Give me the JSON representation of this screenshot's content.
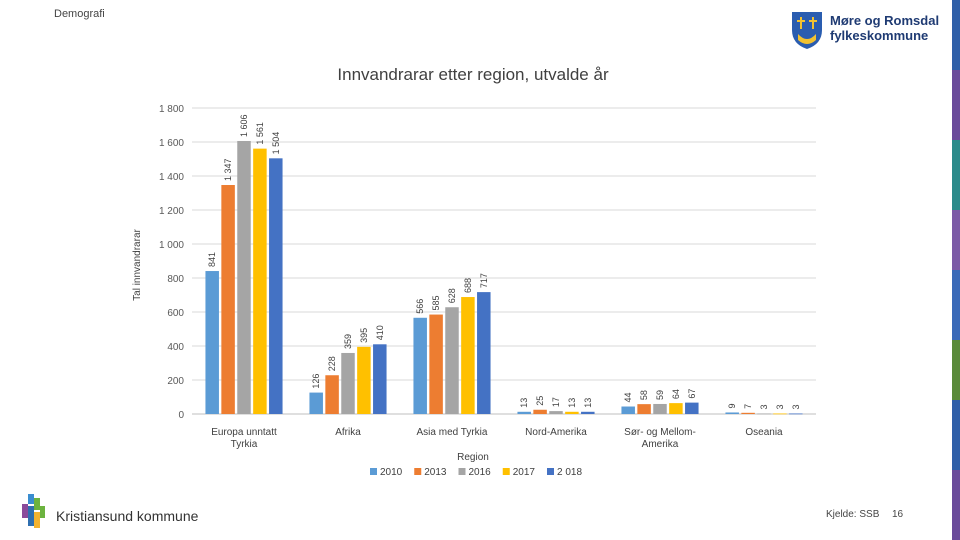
{
  "header": {
    "section": "Demografi"
  },
  "logo": {
    "line1": "Møre og Romsdal",
    "line2": "fylkeskommune"
  },
  "footer": {
    "org": "Kristiansund kommune",
    "source": "Kjelde: SSB",
    "page": "16"
  },
  "colors": {
    "stripes": [
      "#2f5fa8",
      "#6a4a9a",
      "#2b8a8a",
      "#7b5aa6",
      "#3a6ab8",
      "#5a8a3a",
      "#2f5fa8",
      "#6a4a9a"
    ]
  },
  "chart_data": {
    "type": "bar",
    "title": "Innvandrarar etter region, utvalde år",
    "xlabel": "Region",
    "ylabel": "Tal innvandrarar",
    "ylim": [
      0,
      1800
    ],
    "yticks": [
      "0",
      "200",
      "400",
      "600",
      "800",
      "1 000",
      "1 200",
      "1 400",
      "1 600",
      "1 800"
    ],
    "categories": [
      [
        "Europa unntatt",
        "Tyrkia"
      ],
      [
        "Afrika"
      ],
      [
        "Asia med Tyrkia"
      ],
      [
        "Nord-Amerika"
      ],
      [
        "Sør- og Mellom-",
        "Amerika"
      ],
      [
        "Oseania"
      ]
    ],
    "series": [
      {
        "name": "2010",
        "color": "#5b9bd5",
        "values": [
          841,
          126,
          566,
          13,
          44,
          9
        ],
        "labels": [
          "841",
          "126",
          "566",
          "13",
          "44",
          "9"
        ]
      },
      {
        "name": "2013",
        "color": "#ed7d31",
        "values": [
          1347,
          228,
          585,
          25,
          58,
          7
        ],
        "labels": [
          "1 347",
          "228",
          "585",
          "25",
          "58",
          "7"
        ]
      },
      {
        "name": "2016",
        "color": "#a5a5a5",
        "values": [
          1606,
          359,
          628,
          17,
          59,
          3
        ],
        "labels": [
          "1 606",
          "359",
          "628",
          "17",
          "59",
          "3"
        ]
      },
      {
        "name": "2017",
        "color": "#ffc000",
        "values": [
          1561,
          395,
          688,
          13,
          64,
          3
        ],
        "labels": [
          "1 561",
          "395",
          "688",
          "13",
          "64",
          "3"
        ]
      },
      {
        "name": "2 018",
        "color": "#4472c4",
        "values": [
          1504,
          410,
          717,
          13,
          67,
          3
        ],
        "labels": [
          "1 504",
          "410",
          "717",
          "13",
          "67",
          "3"
        ]
      }
    ],
    "grid": true,
    "legend": "bottom"
  }
}
